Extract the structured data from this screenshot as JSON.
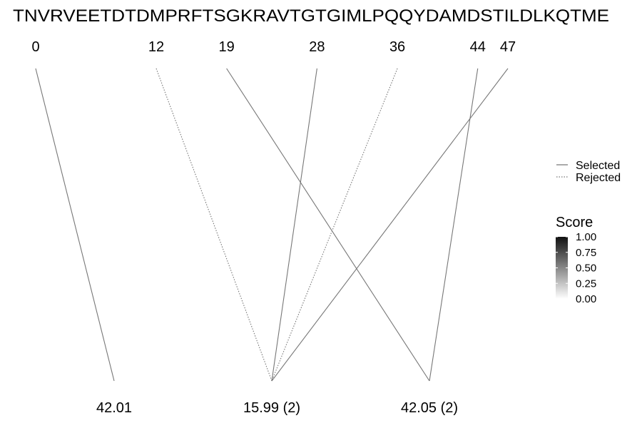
{
  "chart_data": {
    "type": "line",
    "sequence": "TNVRVEETDTDMPRFTSGKRAVTGTGIMLPQQYDAMDSTILDLKQTME",
    "top_positions": [
      0,
      12,
      19,
      28,
      36,
      44,
      47
    ],
    "bottom_labels": [
      "42.01",
      "15.99 (2)",
      "42.05 (2)"
    ],
    "links": [
      {
        "from": 0,
        "to": "42.01",
        "status": "Selected",
        "score": 0.6
      },
      {
        "from": 12,
        "to": "15.99 (2)",
        "status": "Rejected",
        "score": 0.6
      },
      {
        "from": 19,
        "to": "42.05 (2)",
        "status": "Selected",
        "score": 0.6
      },
      {
        "from": 28,
        "to": "15.99 (2)",
        "status": "Selected",
        "score": 0.6
      },
      {
        "from": 36,
        "to": "15.99 (2)",
        "status": "Rejected",
        "score": 0.6
      },
      {
        "from": 44,
        "to": "42.05 (2)",
        "status": "Selected",
        "score": 0.6
      },
      {
        "from": 47,
        "to": "15.99 (2)",
        "status": "Selected",
        "score": 0.6
      }
    ],
    "legend": {
      "entries": [
        {
          "label": "Selected",
          "style": "solid"
        },
        {
          "label": "Rejected",
          "style": "dotted"
        }
      ],
      "position": "right"
    },
    "colorbar": {
      "title": "Score",
      "ticks": [
        "1.00",
        "0.75",
        "0.50",
        "0.25",
        "0.00"
      ],
      "range": [
        0,
        1
      ],
      "color_high": "#111111",
      "color_low": "#ffffff"
    },
    "line_color": "#777777",
    "grid": false
  }
}
